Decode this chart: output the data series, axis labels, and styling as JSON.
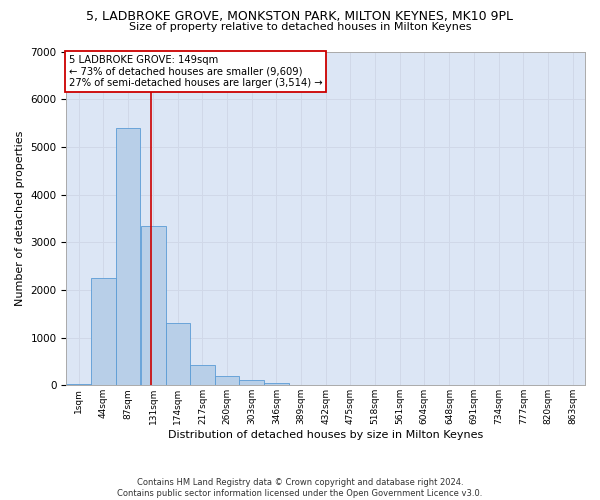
{
  "title": "5, LADBROKE GROVE, MONKSTON PARK, MILTON KEYNES, MK10 9PL",
  "subtitle": "Size of property relative to detached houses in Milton Keynes",
  "xlabel": "Distribution of detached houses by size in Milton Keynes",
  "ylabel": "Number of detached properties",
  "footer_line1": "Contains HM Land Registry data © Crown copyright and database right 2024.",
  "footer_line2": "Contains public sector information licensed under the Open Government Licence v3.0.",
  "bar_color": "#b8cfe8",
  "bar_edge_color": "#5b9bd5",
  "grid_color": "#d0d8e8",
  "bg_color": "#dce6f5",
  "annotation_box_color": "#cc0000",
  "vline_color": "#cc0000",
  "annotation_text_line1": "5 LADBROKE GROVE: 149sqm",
  "annotation_text_line2": "← 73% of detached houses are smaller (9,609)",
  "annotation_text_line3": "27% of semi-detached houses are larger (3,514) →",
  "property_sqm": 149,
  "bin_left_edges": [
    1,
    44,
    87,
    131,
    174,
    217,
    260,
    303,
    346,
    389,
    432,
    475,
    518,
    561,
    604,
    648,
    691,
    734,
    777,
    820,
    863
  ],
  "bin_width": 43,
  "categories": [
    "1sqm",
    "44sqm",
    "87sqm",
    "131sqm",
    "174sqm",
    "217sqm",
    "260sqm",
    "303sqm",
    "346sqm",
    "389sqm",
    "432sqm",
    "475sqm",
    "518sqm",
    "561sqm",
    "604sqm",
    "648sqm",
    "691sqm",
    "734sqm",
    "777sqm",
    "820sqm",
    "863sqm"
  ],
  "values": [
    30,
    2250,
    5400,
    3350,
    1300,
    420,
    195,
    110,
    50,
    15,
    0,
    0,
    0,
    0,
    0,
    0,
    0,
    0,
    0,
    0,
    0
  ],
  "ylim": [
    0,
    7000
  ],
  "yticks": [
    0,
    1000,
    2000,
    3000,
    4000,
    5000,
    6000,
    7000
  ]
}
